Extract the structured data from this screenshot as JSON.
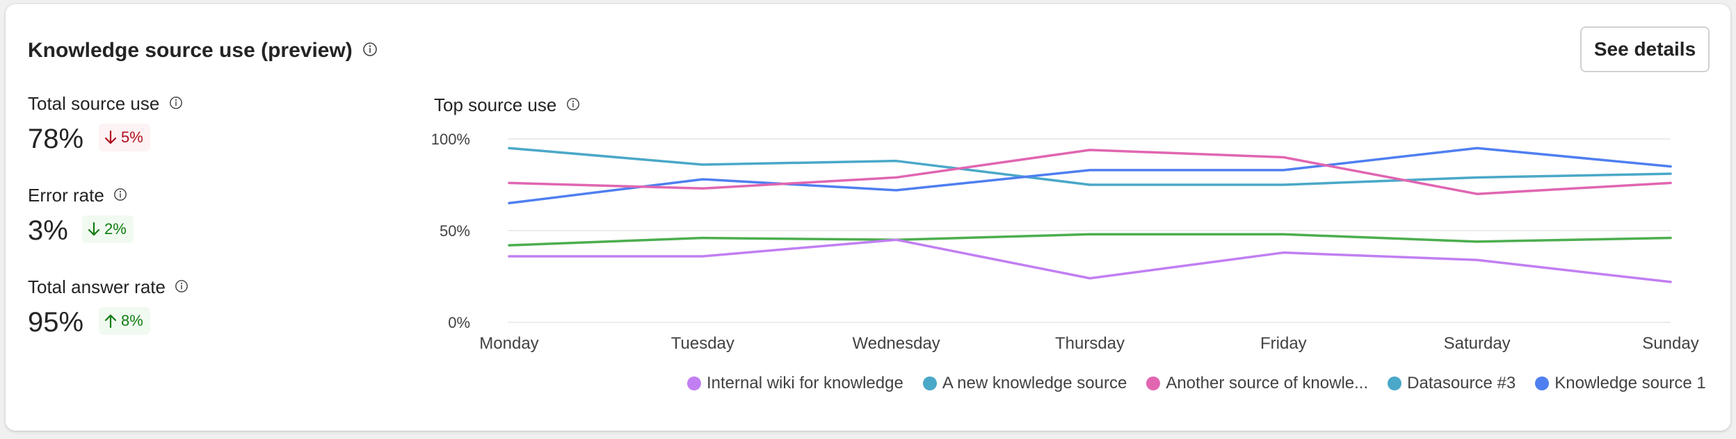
{
  "card": {
    "title": "Knowledge source use (preview)",
    "button_label": "See details"
  },
  "metrics": [
    {
      "label": "Total source use",
      "value": "78%",
      "delta": "5%",
      "direction": "down",
      "tone": "red"
    },
    {
      "label": "Error rate",
      "value": "3%",
      "delta": "2%",
      "direction": "down",
      "tone": "green"
    },
    {
      "label": "Total answer rate",
      "value": "95%",
      "delta": "8%",
      "direction": "up",
      "tone": "green"
    }
  ],
  "chart_title": "Top source use",
  "chart_data": {
    "type": "line",
    "categories": [
      "Monday",
      "Tuesday",
      "Wednesday",
      "Thursday",
      "Friday",
      "Saturday",
      "Sunday"
    ],
    "ylim": [
      0,
      100
    ],
    "yticks": [
      "0%",
      "50%",
      "100%"
    ],
    "grid": true,
    "series": [
      {
        "name": "Internal wiki for knowledge",
        "color": "#c17ff2",
        "values": [
          36,
          36,
          45,
          24,
          38,
          34,
          22
        ]
      },
      {
        "name": "A new knowledge source",
        "color": "#4aa8c8",
        "values": [
          95,
          86,
          88,
          75,
          75,
          79,
          81
        ]
      },
      {
        "name": "Another source of knowle...",
        "color": "#e066b1",
        "values": [
          76,
          73,
          79,
          94,
          90,
          70,
          76
        ]
      },
      {
        "name": "Datasource #3",
        "color": "#4aa8c8",
        "values": [
          42,
          46,
          45,
          48,
          48,
          44,
          46
        ]
      },
      {
        "name": "Knowledge source 1",
        "color": "#4f7ff0",
        "values": [
          65,
          78,
          72,
          83,
          83,
          95,
          85
        ]
      }
    ],
    "unlabeled_series": [
      {
        "color": "#4cae4f",
        "values": [
          42,
          46,
          45,
          48,
          48,
          44,
          46
        ]
      }
    ]
  }
}
